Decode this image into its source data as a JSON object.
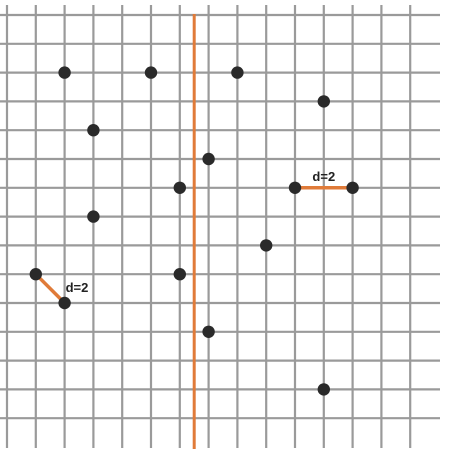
{
  "diagram": {
    "grid_columns": 14,
    "grid_rows": 14,
    "colors": {
      "background": "#ffffff",
      "grid": "#9a9a9a",
      "point": "#2a2a2a",
      "highlight": "#e07b39"
    },
    "points": [
      {
        "col": 2,
        "row": 2
      },
      {
        "col": 5,
        "row": 2
      },
      {
        "col": 8,
        "row": 2
      },
      {
        "col": 11,
        "row": 3
      },
      {
        "col": 3,
        "row": 4
      },
      {
        "col": 7,
        "row": 5
      },
      {
        "col": 6,
        "row": 6
      },
      {
        "col": 10,
        "row": 6
      },
      {
        "col": 12,
        "row": 6
      },
      {
        "col": 3,
        "row": 7
      },
      {
        "col": 9,
        "row": 8
      },
      {
        "col": 1,
        "row": 9
      },
      {
        "col": 6,
        "row": 9
      },
      {
        "col": 2,
        "row": 10
      },
      {
        "col": 7,
        "row": 11
      },
      {
        "col": 11,
        "row": 13
      }
    ],
    "divider_col": 6.5,
    "closest_pairs": [
      {
        "from": {
          "col": 10,
          "row": 6
        },
        "to": {
          "col": 12,
          "row": 6
        },
        "label": "d=2"
      },
      {
        "from": {
          "col": 1,
          "row": 9
        },
        "to": {
          "col": 2,
          "row": 10
        },
        "label": "d=2"
      }
    ]
  }
}
